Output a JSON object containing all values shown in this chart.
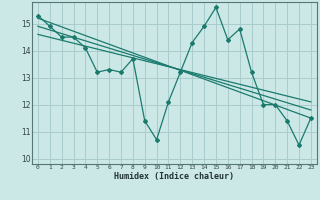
{
  "title": "",
  "xlabel": "Humidex (Indice chaleur)",
  "ylabel": "",
  "bg_color": "#cce8e6",
  "grid_color": "#aacccc",
  "line_color": "#1a7a6e",
  "xlim": [
    -0.5,
    23.5
  ],
  "ylim": [
    9.8,
    15.8
  ],
  "xticks": [
    0,
    1,
    2,
    3,
    4,
    5,
    6,
    7,
    8,
    9,
    10,
    11,
    12,
    13,
    14,
    15,
    16,
    17,
    18,
    19,
    20,
    21,
    22,
    23
  ],
  "yticks": [
    10,
    11,
    12,
    13,
    14,
    15
  ],
  "main_series": {
    "x": [
      0,
      1,
      2,
      3,
      4,
      5,
      6,
      7,
      8,
      9,
      10,
      11,
      12,
      13,
      14,
      15,
      16,
      17,
      18,
      19,
      20,
      21,
      22,
      23
    ],
    "y": [
      15.3,
      14.9,
      14.5,
      14.5,
      14.1,
      13.2,
      13.3,
      13.2,
      13.7,
      11.4,
      10.7,
      12.1,
      13.2,
      14.3,
      14.9,
      15.6,
      14.4,
      14.8,
      13.2,
      12.0,
      12.0,
      11.4,
      10.5,
      11.5
    ]
  },
  "regression_lines": [
    {
      "x": [
        0,
        23
      ],
      "y": [
        15.2,
        11.5
      ]
    },
    {
      "x": [
        0,
        23
      ],
      "y": [
        14.9,
        11.8
      ]
    },
    {
      "x": [
        0,
        23
      ],
      "y": [
        14.6,
        12.1
      ]
    }
  ]
}
